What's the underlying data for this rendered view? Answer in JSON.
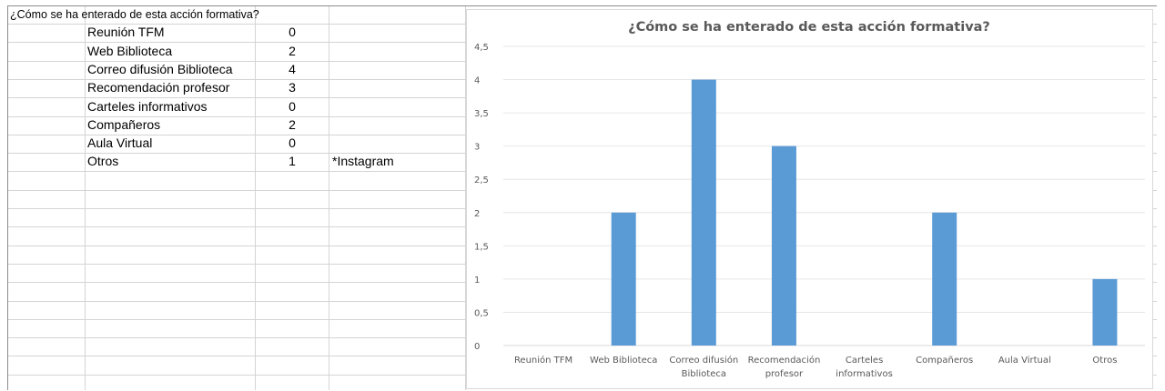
{
  "sheet": {
    "title": "¿Cómo se ha enterado de esta acción formativa?",
    "rows": [
      {
        "label": "Reunión TFM",
        "value": "0",
        "note": ""
      },
      {
        "label": "Web Biblioteca",
        "value": "2",
        "note": ""
      },
      {
        "label": "Correo difusión Biblioteca",
        "value": "4",
        "note": ""
      },
      {
        "label": "Recomendación profesor",
        "value": "3",
        "note": ""
      },
      {
        "label": "Carteles informativos",
        "value": "0",
        "note": ""
      },
      {
        "label": "Compañeros",
        "value": "2",
        "note": ""
      },
      {
        "label": "Aula Virtual",
        "value": "0",
        "note": ""
      },
      {
        "label": "Otros",
        "value": "1",
        "note": "*Instagram"
      }
    ]
  },
  "chart_data": {
    "type": "bar",
    "title": "¿Cómo se ha enterado de esta acción formativa?",
    "categories": [
      [
        "Reunión TFM"
      ],
      [
        "Web Biblioteca"
      ],
      [
        "Correo difusión",
        "Biblioteca"
      ],
      [
        "Recomendación",
        "profesor"
      ],
      [
        "Carteles",
        "informativos"
      ],
      [
        "Compañeros"
      ],
      [
        "Aula Virtual"
      ],
      [
        "Otros"
      ]
    ],
    "values": [
      0,
      2,
      4,
      3,
      0,
      2,
      0,
      1
    ],
    "ylim": [
      0,
      4.5
    ],
    "yticks": [
      "0",
      "0,5",
      "1",
      "1,5",
      "2",
      "2,5",
      "3",
      "3,5",
      "4",
      "4,5"
    ],
    "bar_color": "#5b9bd5",
    "grid": true,
    "legend": "none"
  }
}
